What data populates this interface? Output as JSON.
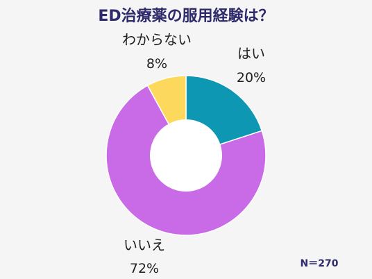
{
  "chart_data": {
    "type": "pie",
    "title": "ED治療薬の服用経験は？",
    "categories": [
      "はい",
      "いいえ",
      "わからない"
    ],
    "values": [
      20,
      72,
      8
    ],
    "value_labels": [
      "20%",
      "72%",
      "8%"
    ],
    "colors": [
      "#0e97b3",
      "#c96ae6",
      "#fcd95c"
    ],
    "donut": true,
    "sample_note": "N＝270"
  }
}
